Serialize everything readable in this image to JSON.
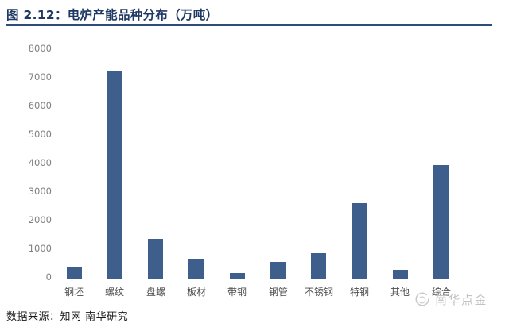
{
  "header": {
    "title": "图 2.12：电炉产能品种分布（万吨）"
  },
  "footer": {
    "source": "数据来源：知网 南华研究"
  },
  "watermark": {
    "label": "南华点金"
  },
  "colors": {
    "title": "#1f3864",
    "title_rule": "#2e4d7b",
    "bar": "#3e5f8c",
    "y_tick_label": "#808080",
    "x_tick_label": "#4d4d4d",
    "baseline": "#d6d6d6",
    "footer_text": "#1a1a1a",
    "watermark": "#c3c3c3"
  },
  "chart_data": {
    "type": "bar",
    "title": "电炉产能品种分布（万吨）",
    "categories": [
      "钢坯",
      "螺纹",
      "盘螺",
      "板材",
      "带钢",
      "钢管",
      "不锈钢",
      "特钢",
      "其他",
      "综合"
    ],
    "values": [
      420,
      7250,
      1380,
      700,
      190,
      580,
      900,
      2650,
      300,
      3980
    ],
    "xlabel": "",
    "ylabel": "",
    "ylim": [
      0,
      8000
    ],
    "ytick_interval": 1000,
    "grid": false,
    "legend": false,
    "unit": "万吨"
  }
}
